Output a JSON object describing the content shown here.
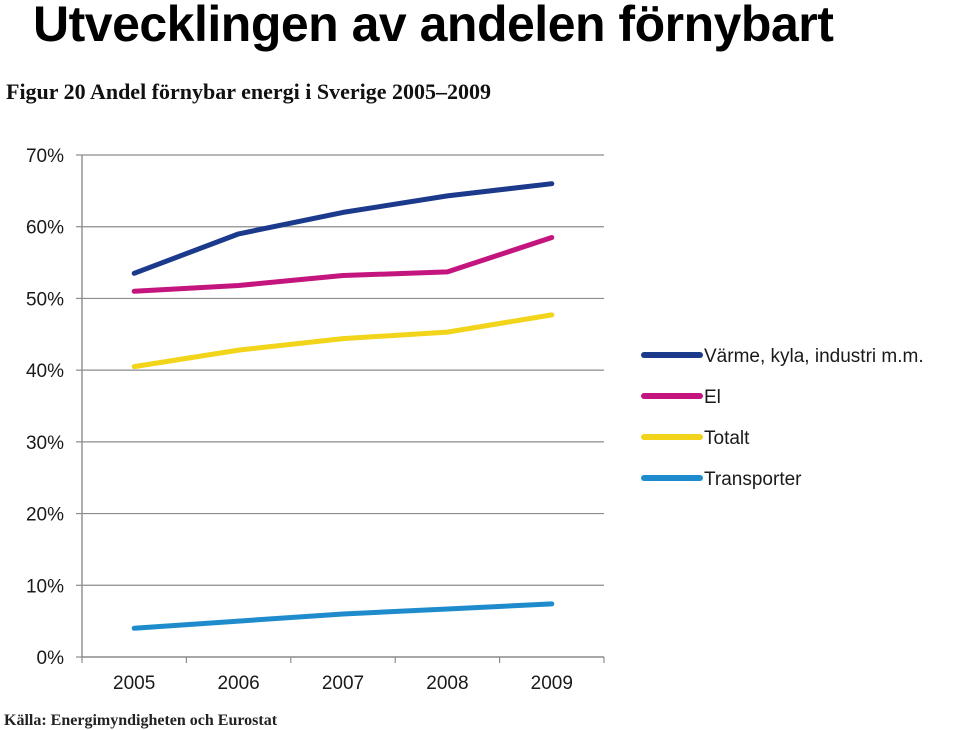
{
  "slide": {
    "title": "Utvecklingen av andelen förnybart"
  },
  "chart_data": {
    "type": "line",
    "title": "Figur 20 Andel förnybar energi i Sverige 2005–2009",
    "xlabel": "",
    "ylabel": "",
    "categories": [
      "2005",
      "2006",
      "2007",
      "2008",
      "2009"
    ],
    "ylim": [
      0,
      70
    ],
    "yticks": [
      "0%",
      "10%",
      "20%",
      "30%",
      "40%",
      "50%",
      "60%",
      "70%"
    ],
    "grid": true,
    "legend_position": "right",
    "series": [
      {
        "name": "Värme, kyla, industri m.m.",
        "color": "#1b3a8c",
        "values": [
          53.5,
          59.0,
          62.0,
          64.3,
          66.0
        ]
      },
      {
        "name": "El",
        "color": "#c4157e",
        "values": [
          51.0,
          51.8,
          53.2,
          53.7,
          58.5
        ]
      },
      {
        "name": "Totalt",
        "color": "#f2d41a",
        "values": [
          40.5,
          42.8,
          44.4,
          45.3,
          47.7
        ]
      },
      {
        "name": "Transporter",
        "color": "#1e8ccc",
        "values": [
          4.0,
          5.0,
          6.0,
          6.7,
          7.4
        ]
      }
    ],
    "source": "Källa: Energimyndigheten och Eurostat"
  }
}
